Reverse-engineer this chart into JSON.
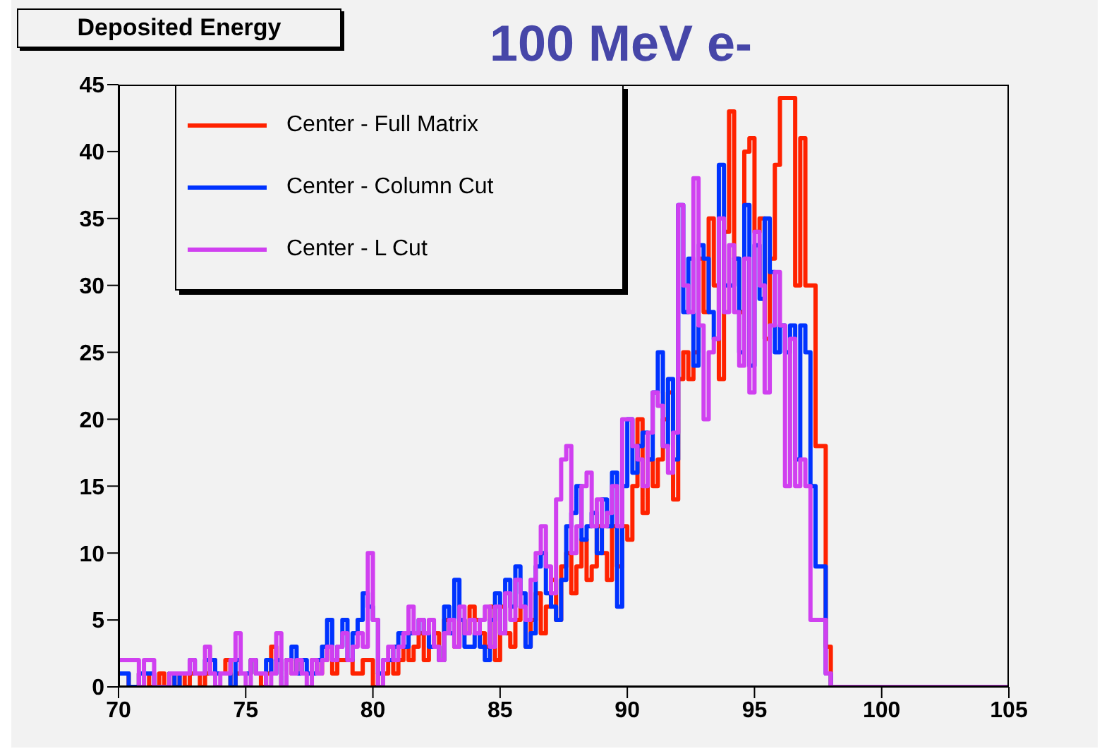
{
  "chart_data": {
    "type": "histogram",
    "title": "Deposited Energy",
    "subtitle": "100 MeV e-",
    "bins": [
      70,
      70.2,
      70.4,
      70.6,
      70.8,
      71,
      71.2,
      71.4,
      71.6,
      71.8,
      72,
      72.2,
      72.4,
      72.6,
      72.8,
      73,
      73.2,
      73.4,
      73.6,
      73.8,
      74,
      74.2,
      74.4,
      74.6,
      74.8,
      75,
      75.2,
      75.4,
      75.6,
      75.8,
      76,
      76.2,
      76.4,
      76.6,
      76.8,
      77,
      77.2,
      77.4,
      77.6,
      77.8,
      78,
      78.2,
      78.4,
      78.6,
      78.8,
      79,
      79.2,
      79.4,
      79.6,
      79.8,
      80,
      80.2,
      80.4,
      80.6,
      80.8,
      81,
      81.2,
      81.4,
      81.6,
      81.8,
      82,
      82.2,
      82.4,
      82.6,
      82.8,
      83,
      83.2,
      83.4,
      83.6,
      83.8,
      84,
      84.2,
      84.4,
      84.6,
      84.8,
      85,
      85.2,
      85.4,
      85.6,
      85.8,
      86,
      86.2,
      86.4,
      86.6,
      86.8,
      87,
      87.2,
      87.4,
      87.6,
      87.8,
      88,
      88.2,
      88.4,
      88.6,
      88.8,
      89,
      89.2,
      89.4,
      89.6,
      89.8,
      90,
      90.2,
      90.4,
      90.6,
      90.8,
      91,
      91.2,
      91.4,
      91.6,
      91.8,
      92,
      92.2,
      92.4,
      92.6,
      92.8,
      93,
      93.2,
      93.4,
      93.6,
      93.8,
      94,
      94.2,
      94.4,
      94.6,
      94.8,
      95,
      95.2,
      95.4,
      95.6,
      95.8,
      96,
      96.2,
      96.4,
      96.6,
      96.8,
      97,
      97.2,
      97.4,
      97.6,
      97.8,
      98,
      105
    ],
    "series": [
      {
        "name": "Center - Full Matrix",
        "color": "#ff2200",
        "values": [
          1,
          1,
          0,
          0,
          1,
          1,
          0,
          0,
          1,
          0,
          1,
          0,
          1,
          0,
          1,
          1,
          0,
          1,
          2,
          1,
          1,
          2,
          0,
          1,
          1,
          1,
          2,
          1,
          0,
          1,
          3,
          2,
          0,
          2,
          1,
          2,
          1,
          1,
          2,
          1,
          2,
          3,
          1,
          2,
          2,
          2,
          1,
          1,
          2,
          2,
          0,
          1,
          1,
          2,
          1,
          2,
          3,
          2,
          3,
          4,
          2,
          3,
          4,
          2,
          5,
          4,
          3,
          5,
          4,
          6,
          5,
          4,
          3,
          6,
          2,
          6,
          4,
          3,
          5,
          6,
          3,
          5,
          7,
          4,
          6,
          8,
          5,
          9,
          10,
          7,
          9,
          11,
          8,
          9,
          12,
          10,
          8,
          12,
          9,
          12,
          11,
          15,
          20,
          13,
          17,
          15,
          17,
          20,
          22,
          14,
          23,
          25,
          23,
          25,
          32,
          28,
          35,
          30,
          23,
          34,
          43,
          32,
          28,
          40,
          41,
          34,
          35,
          26,
          32,
          39,
          44,
          44,
          44,
          30,
          41,
          30,
          30,
          18,
          18,
          3,
          0
        ]
      },
      {
        "name": "Center - Column Cut",
        "color": "#0033ff",
        "values": [
          1,
          1,
          0,
          0,
          1,
          1,
          1,
          0,
          0,
          0,
          1,
          0,
          1,
          1,
          2,
          1,
          1,
          2,
          2,
          1,
          1,
          1,
          0,
          2,
          1,
          1,
          2,
          1,
          1,
          2,
          1,
          2,
          0,
          2,
          3,
          1,
          2,
          1,
          1,
          2,
          3,
          5,
          2,
          3,
          5,
          2,
          4,
          5,
          7,
          6,
          5,
          1,
          2,
          2,
          3,
          4,
          3,
          4,
          4,
          5,
          4,
          3,
          3,
          2,
          6,
          4,
          8,
          5,
          3,
          3,
          4,
          3,
          2,
          5,
          7,
          4,
          8,
          6,
          9,
          7,
          3,
          4,
          9,
          10,
          7,
          6,
          5,
          8,
          12,
          13,
          15,
          11,
          12,
          13,
          10,
          14,
          12,
          16,
          6,
          15,
          20,
          16,
          18,
          19,
          17,
          22,
          25,
          18,
          23,
          17,
          36,
          28,
          32,
          24,
          33,
          32,
          28,
          26,
          39,
          30,
          30,
          32,
          25,
          36,
          24,
          33,
          29,
          35,
          31,
          25,
          27,
          25,
          27,
          17,
          27,
          25,
          15,
          9,
          9,
          1,
          0
        ]
      },
      {
        "name": "Center - L Cut",
        "color": "#d040f0",
        "values": [
          2,
          2,
          2,
          2,
          0,
          2,
          2,
          0,
          0,
          0,
          1,
          1,
          1,
          1,
          2,
          1,
          1,
          3,
          1,
          0,
          1,
          1,
          2,
          4,
          1,
          0,
          2,
          1,
          1,
          0,
          1,
          4,
          0,
          2,
          1,
          2,
          1,
          0,
          2,
          1,
          2,
          3,
          2,
          3,
          4,
          2,
          3,
          4,
          3,
          10,
          5,
          0,
          2,
          3,
          2,
          3,
          4,
          6,
          4,
          5,
          4,
          5,
          3,
          2,
          4,
          5,
          3,
          6,
          4,
          5,
          4,
          5,
          6,
          3,
          6,
          4,
          7,
          5,
          8,
          6,
          5,
          8,
          10,
          12,
          9,
          7,
          14,
          17,
          18,
          10,
          12,
          15,
          16,
          12,
          14,
          12,
          13,
          15,
          12,
          20,
          20,
          18,
          17,
          15,
          19,
          22,
          21,
          18,
          16,
          19,
          36,
          30,
          28,
          38,
          27,
          20,
          25,
          26,
          35,
          28,
          33,
          28,
          24,
          32,
          22,
          34,
          30,
          22,
          27,
          31,
          27,
          15,
          26,
          15,
          17,
          15,
          5,
          5,
          5,
          1,
          0
        ]
      }
    ],
    "xlim": [
      70,
      105
    ],
    "xticks": [
      70,
      75,
      80,
      85,
      90,
      95,
      100,
      105
    ],
    "ylim": [
      0,
      45
    ],
    "yticks": [
      0,
      5,
      10,
      15,
      20,
      25,
      30,
      35,
      40,
      45
    ],
    "legend": "top left",
    "grid": false,
    "line_style": "solid"
  }
}
